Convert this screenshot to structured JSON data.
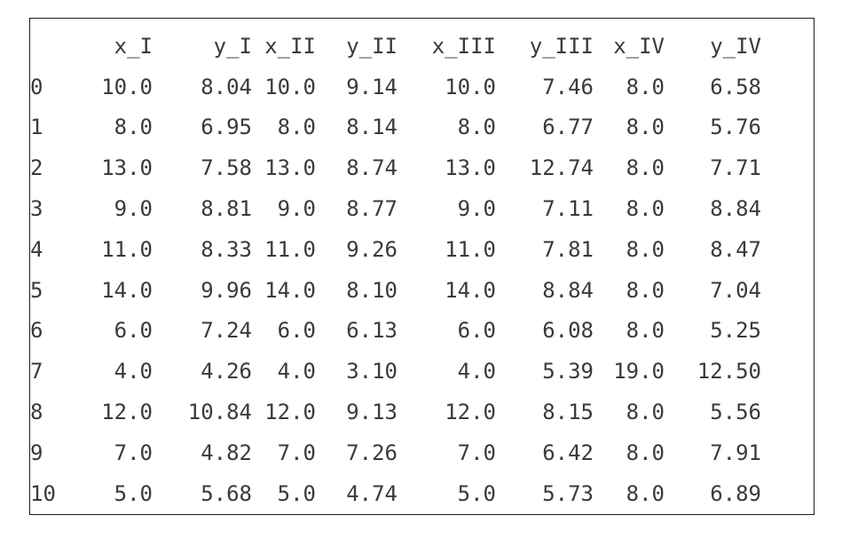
{
  "table": {
    "columns": [
      "",
      "x_I",
      "y_I",
      "x_II",
      "y_II",
      "x_III",
      "y_III",
      "x_IV",
      "y_IV"
    ],
    "rows": [
      [
        "0",
        "10.0",
        "8.04",
        "10.0",
        "9.14",
        "10.0",
        "7.46",
        "8.0",
        "6.58"
      ],
      [
        "1",
        "8.0",
        "6.95",
        "8.0",
        "8.14",
        "8.0",
        "6.77",
        "8.0",
        "5.76"
      ],
      [
        "2",
        "13.0",
        "7.58",
        "13.0",
        "8.74",
        "13.0",
        "12.74",
        "8.0",
        "7.71"
      ],
      [
        "3",
        "9.0",
        "8.81",
        "9.0",
        "8.77",
        "9.0",
        "7.11",
        "8.0",
        "8.84"
      ],
      [
        "4",
        "11.0",
        "8.33",
        "11.0",
        "9.26",
        "11.0",
        "7.81",
        "8.0",
        "8.47"
      ],
      [
        "5",
        "14.0",
        "9.96",
        "14.0",
        "8.10",
        "14.0",
        "8.84",
        "8.0",
        "7.04"
      ],
      [
        "6",
        "6.0",
        "7.24",
        "6.0",
        "6.13",
        "6.0",
        "6.08",
        "8.0",
        "5.25"
      ],
      [
        "7",
        "4.0",
        "4.26",
        "4.0",
        "3.10",
        "4.0",
        "5.39",
        "19.0",
        "12.50"
      ],
      [
        "8",
        "12.0",
        "10.84",
        "12.0",
        "9.13",
        "12.0",
        "8.15",
        "8.0",
        "5.56"
      ],
      [
        "9",
        "7.0",
        "4.82",
        "7.0",
        "7.26",
        "7.0",
        "6.42",
        "8.0",
        "7.91"
      ],
      [
        "10",
        "5.0",
        "5.68",
        "5.0",
        "4.74",
        "5.0",
        "5.73",
        "8.0",
        "6.89"
      ]
    ]
  }
}
